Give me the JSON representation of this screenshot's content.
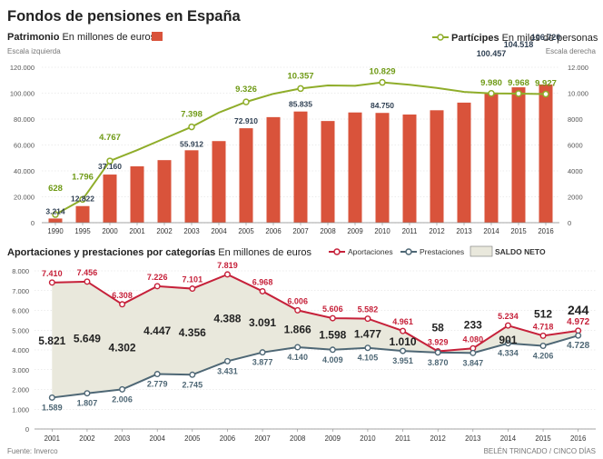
{
  "title": "Fondos de pensiones en España",
  "colors": {
    "bar": "#d9533b",
    "participes": "#8fad2a",
    "participes_label": "#6f9a16",
    "aportaciones": "#c6213a",
    "prestaciones": "#4e6775",
    "saldo_fill": "#e9e8dc",
    "grid": "#dadada",
    "text": "#333333",
    "axis": "#888888"
  },
  "chart_data": [
    {
      "type": "bar",
      "title": "Patrimonio",
      "subtitle": "En millones de euros",
      "scale_note_left": "Escala izquierda",
      "categories": [
        "1990",
        "1995",
        "2000",
        "2001",
        "2002",
        "2003",
        "2004",
        "2005",
        "2006",
        "2007",
        "2008",
        "2009",
        "2010",
        "2011",
        "2012",
        "2013",
        "2014",
        "2015",
        "2016"
      ],
      "values": [
        3214,
        12822,
        37160,
        43500,
        48300,
        55912,
        63000,
        72910,
        81500,
        85835,
        78500,
        85100,
        84750,
        83500,
        86800,
        92700,
        100457,
        104518,
        106720
      ],
      "data_labels": [
        {
          "index": 0,
          "text": "3.214"
        },
        {
          "index": 1,
          "text": "12.822"
        },
        {
          "index": 2,
          "text": "37.160"
        },
        {
          "index": 5,
          "text": "55.912"
        },
        {
          "index": 7,
          "text": "72.910"
        },
        {
          "index": 9,
          "text": "85.835"
        },
        {
          "index": 12,
          "text": "84.750"
        },
        {
          "index": 16,
          "text": "100.457"
        },
        {
          "index": 17,
          "text": "104.518"
        },
        {
          "index": 18,
          "text": "106.720"
        }
      ],
      "ylim": [
        0,
        120000
      ],
      "yticks": [
        0,
        20000,
        40000,
        60000,
        80000,
        100000,
        120000
      ],
      "ytick_labels": [
        "0",
        "20.000",
        "40.000",
        "60.000",
        "80.000",
        "100.000",
        "120.000"
      ]
    },
    {
      "type": "line",
      "title": "Partícipes",
      "subtitle": "En miles de personas",
      "scale_note_right": "Escala derecha",
      "categories": [
        "1990",
        "1995",
        "2000",
        "2001",
        "2002",
        "2003",
        "2004",
        "2005",
        "2006",
        "2007",
        "2008",
        "2009",
        "2010",
        "2011",
        "2012",
        "2013",
        "2014",
        "2015",
        "2016"
      ],
      "values": [
        628,
        1796,
        4767,
        5600,
        6500,
        7398,
        8500,
        9326,
        9950,
        10357,
        10600,
        10570,
        10829,
        10650,
        10400,
        10100,
        9980,
        9968,
        9927
      ],
      "markers": [
        0,
        1,
        2,
        5,
        7,
        9,
        12,
        16,
        17,
        18
      ],
      "data_labels": [
        {
          "index": 0,
          "text": "628"
        },
        {
          "index": 1,
          "text": "1.796"
        },
        {
          "index": 2,
          "text": "4.767"
        },
        {
          "index": 5,
          "text": "7.398"
        },
        {
          "index": 7,
          "text": "9.326"
        },
        {
          "index": 9,
          "text": "10.357"
        },
        {
          "index": 12,
          "text": "10.829"
        },
        {
          "index": 16,
          "text": "9.980"
        },
        {
          "index": 17,
          "text": "9.968"
        },
        {
          "index": 18,
          "text": "9.927"
        }
      ],
      "ylim": [
        0,
        12000
      ],
      "yticks": [
        0,
        2000,
        4000,
        6000,
        8000,
        10000,
        12000
      ],
      "ytick_labels": [
        "0",
        "2000",
        "4000",
        "6000",
        "8000",
        "10.000",
        "12.000"
      ]
    },
    {
      "type": "line",
      "title": "Aportaciones y prestaciones por categorías",
      "subtitle": "En millones de euros",
      "legend": [
        "Aportaciones",
        "Prestaciones",
        "SALDO NETO"
      ],
      "categories": [
        "2001",
        "2002",
        "2003",
        "2004",
        "2005",
        "2006",
        "2007",
        "2008",
        "2009",
        "2010",
        "2011",
        "2012",
        "2013",
        "2014",
        "2015",
        "2016"
      ],
      "series": [
        {
          "name": "Aportaciones",
          "values": [
            7410,
            7456,
            6308,
            7226,
            7101,
            7819,
            6968,
            6006,
            5606,
            5582,
            4961,
            3929,
            4080,
            5234,
            4718,
            4972
          ],
          "labels": [
            "7.410",
            "7.456",
            "6.308",
            "7.226",
            "7.101",
            "7.819",
            "6.968",
            "6.006",
            "5.606",
            "5.582",
            "4.961",
            "3.929",
            "4.080",
            "5.234",
            "4.718",
            "4.972"
          ]
        },
        {
          "name": "Prestaciones",
          "values": [
            1589,
            1807,
            2006,
            2779,
            2745,
            3431,
            3877,
            4140,
            4009,
            4105,
            3951,
            3870,
            3847,
            4334,
            4206,
            4728
          ],
          "labels": [
            "1.589",
            "1.807",
            "2.006",
            "2.779",
            "2.745",
            "3.431",
            "3.877",
            "4.140",
            "4.009",
            "4.105",
            "3.951",
            "3.870",
            "3.847",
            "4.334",
            "4.206",
            "4.728"
          ]
        },
        {
          "name": "Saldo neto",
          "values": [
            5821,
            5649,
            4302,
            4447,
            4356,
            4388,
            3091,
            1866,
            1598,
            1477,
            1010,
            58,
            233,
            901,
            512,
            244
          ],
          "labels": [
            "5.821",
            "5.649",
            "4.302",
            "4.447",
            "4.356",
            "4.388",
            "3.091",
            "1.866",
            "1.598",
            "1.477",
            "1.010",
            "58",
            "233",
            "901",
            "512",
            "244"
          ]
        }
      ],
      "ylim": [
        0,
        8000
      ],
      "yticks": [
        0,
        1000,
        2000,
        3000,
        4000,
        5000,
        6000,
        7000,
        8000
      ],
      "ytick_labels": [
        "0",
        "1.000",
        "2.000",
        "3.000",
        "4.000",
        "5.000",
        "6.000",
        "7.000",
        "8.000"
      ]
    }
  ],
  "footer": {
    "source": "Fuente: Inverco",
    "credit": "BELÉN TRINCADO / CINCO DÍAS"
  }
}
